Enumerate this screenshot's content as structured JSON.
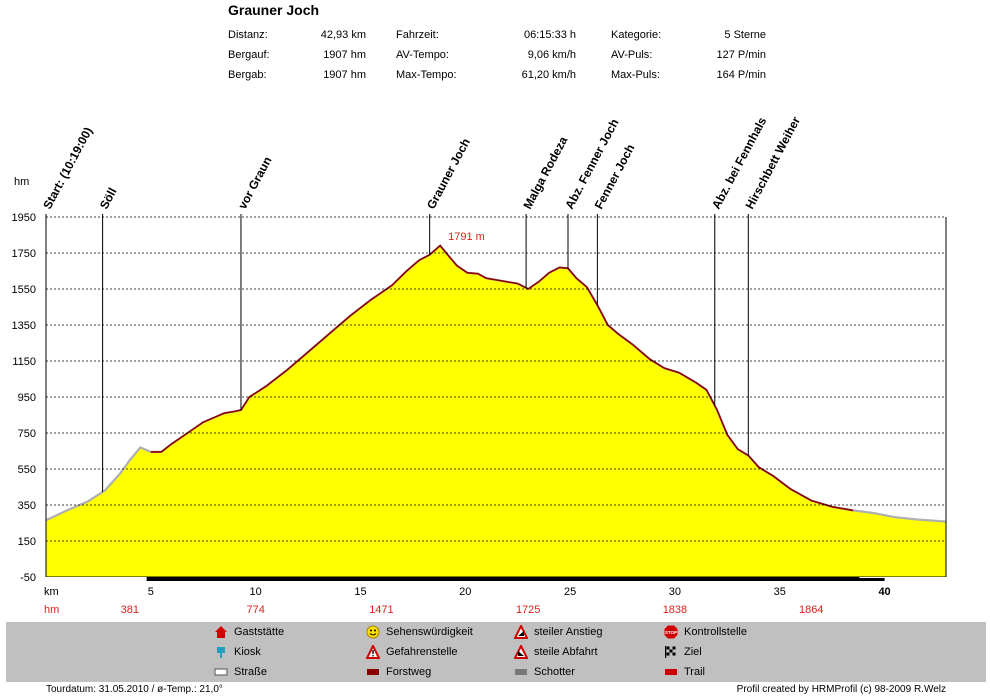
{
  "header": {
    "title": "Grauner Joch",
    "stats": [
      {
        "label": "Distanz:",
        "value": "42,93 km"
      },
      {
        "label": "Bergauf:",
        "value": "1907 hm"
      },
      {
        "label": "Bergab:",
        "value": "1907 hm"
      },
      {
        "label": "Fahrzeit:",
        "value": "06:15:33 h"
      },
      {
        "label": "AV-Tempo:",
        "value": "9,06 km/h"
      },
      {
        "label": "Max-Tempo:",
        "value": "61,20 km/h"
      },
      {
        "label": "Kategorie:",
        "value": "5 Sterne"
      },
      {
        "label": "AV-Puls:",
        "value": "127 P/min"
      },
      {
        "label": "Max-Puls:",
        "value": "164 P/min"
      }
    ]
  },
  "chart_data": {
    "type": "area",
    "ylabel": "hm",
    "xlabel": "km",
    "ylim": [
      -50,
      1950
    ],
    "xlim": [
      0,
      42.93
    ],
    "y_ticks": [
      "1950",
      "1750",
      "1550",
      "1350",
      "1150",
      "950",
      "750",
      "550",
      "350",
      "150",
      "-50"
    ],
    "x_ticks": [
      "5",
      "10",
      "15",
      "20",
      "25",
      "30",
      "35",
      "40"
    ],
    "x": [
      0,
      1,
      2,
      2.8,
      3.5,
      4,
      4.5,
      5,
      5.5,
      6,
      6.5,
      7,
      7.5,
      8,
      8.5,
      9,
      9.3,
      9.7,
      10.5,
      11.5,
      12.5,
      13.5,
      14.5,
      15.5,
      16.5,
      17.2,
      17.8,
      18.3,
      18.8,
      19.2,
      19.6,
      20.1,
      20.6,
      21,
      21.5,
      22,
      22.5,
      23,
      23.5,
      24,
      24.5,
      24.9,
      25.3,
      25.8,
      26.3,
      26.8,
      27.3,
      28,
      28.8,
      29.5,
      30.2,
      31,
      31.5,
      32,
      32.5,
      33,
      33.5,
      34,
      34.7,
      35.5,
      36.5,
      37.5,
      38.5,
      39.5,
      40.5,
      41.5,
      42.93
    ],
    "y": [
      265,
      320,
      370,
      430,
      520,
      600,
      670,
      645,
      645,
      690,
      730,
      770,
      810,
      835,
      860,
      870,
      878,
      950,
      1010,
      1100,
      1200,
      1300,
      1400,
      1490,
      1570,
      1650,
      1710,
      1740,
      1791,
      1735,
      1680,
      1640,
      1635,
      1610,
      1600,
      1590,
      1580,
      1550,
      1590,
      1640,
      1670,
      1665,
      1610,
      1560,
      1460,
      1350,
      1300,
      1240,
      1160,
      1110,
      1085,
      1030,
      990,
      880,
      740,
      660,
      625,
      560,
      510,
      440,
      375,
      340,
      320,
      305,
      282,
      270,
      258
    ],
    "annotations": [
      {
        "label": "1791 m",
        "x": 18.8,
        "y": 1791
      }
    ],
    "waypoints": [
      {
        "name": "Start: (10:19:00)",
        "x": 0
      },
      {
        "name": "Söll",
        "x": 2.7
      },
      {
        "name": "vor Graun",
        "x": 9.3
      },
      {
        "name": "Grauner Joch",
        "x": 18.3
      },
      {
        "name": "Malga Rodeza",
        "x": 22.9
      },
      {
        "name": "Abz. Fenner Joch",
        "x": 24.9
      },
      {
        "name": "Fenner Joch",
        "x": 26.3
      },
      {
        "name": "Abz. bei Fennhals",
        "x": 31.9
      },
      {
        "name": "Hirschbett Weiher",
        "x": 33.5
      }
    ],
    "hm_row_label": "hm",
    "hm_row": [
      {
        "value": "381",
        "x": 4
      },
      {
        "value": "774",
        "x": 10
      },
      {
        "value": "1471",
        "x": 16
      },
      {
        "value": "1725",
        "x": 23
      },
      {
        "value": "1838",
        "x": 30
      },
      {
        "value": "1864",
        "x": 36.5
      }
    ],
    "fill_color": "#ffff00",
    "axis_label_color": "#e0201c",
    "surface_segments": [
      {
        "type": "Straße",
        "from": 0,
        "to": 4.8
      },
      {
        "type": "Forstweg",
        "from": 4.8,
        "to": 38.8
      },
      {
        "type": "Straße",
        "from": 38.8,
        "to": 42.93
      }
    ]
  },
  "legend": {
    "items": [
      {
        "label": "Gaststätte",
        "icon": "house-icon"
      },
      {
        "label": "Kiosk",
        "icon": "kiosk-icon"
      },
      {
        "label": "Straße",
        "icon": "road-icon"
      },
      {
        "label": "Sehenswürdigkeit",
        "icon": "smiley-icon"
      },
      {
        "label": "Gefahrenstelle",
        "icon": "danger-icon"
      },
      {
        "label": "Forstweg",
        "icon": "forest-road-icon"
      },
      {
        "label": "steiler Anstieg",
        "icon": "steep-up-icon"
      },
      {
        "label": "steile Abfahrt",
        "icon": "steep-down-icon"
      },
      {
        "label": "Schotter",
        "icon": "gravel-icon"
      },
      {
        "label": "Kontrollstelle",
        "icon": "stop-icon"
      },
      {
        "label": "Ziel",
        "icon": "finish-flag-icon"
      },
      {
        "label": "Trail",
        "icon": "trail-icon"
      }
    ]
  },
  "footer": {
    "left": "Tourdatum: 31.05.2010  /  ø-Temp.: 21,0°",
    "right": "Profil created by HRMProfil (c) 98-2009 R.Welz"
  }
}
